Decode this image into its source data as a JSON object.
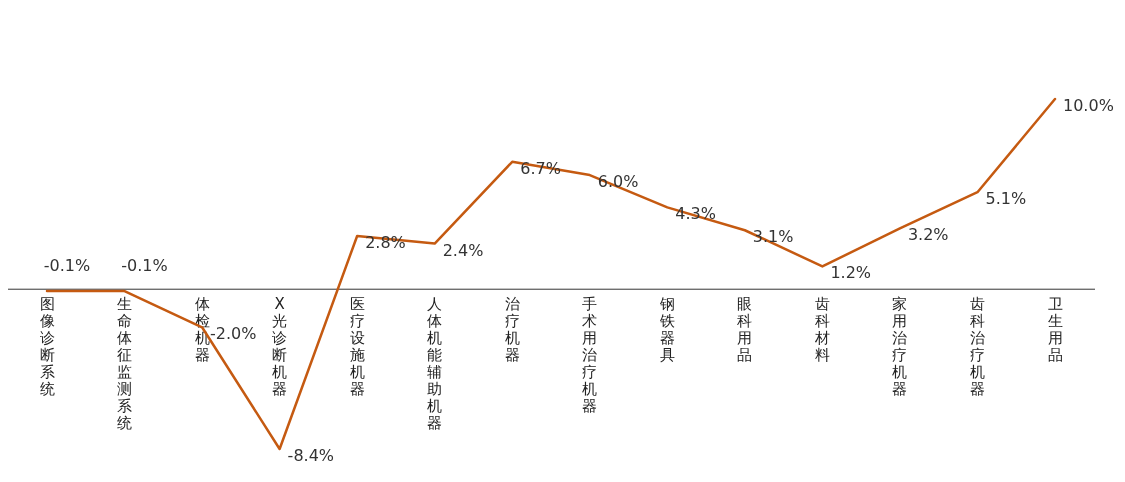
{
  "chart_data": {
    "type": "line",
    "categories": [
      "图像诊断系统",
      "生命体征监测系统",
      "体检机器",
      "X光诊断机器",
      "医疗设施机器",
      "人体机能辅助机器",
      "治疗机器",
      "手术用治疗机器",
      "钢铁器具",
      "眼科用品",
      "齿科材料",
      "家用治疗机器",
      "齿科治疗机器",
      "卫生用品"
    ],
    "series": [
      {
        "color": "#c55a11",
        "values": [
          -0.1,
          -0.1,
          -2.0,
          -8.4,
          2.8,
          2.4,
          6.7,
          6.0,
          4.3,
          3.1,
          1.2,
          3.2,
          5.1,
          10.0
        ],
        "value_labels": [
          "-0.1%",
          "-0.1%",
          "-2.0%",
          "-8.4%",
          "2.8%",
          "2.4%",
          "6.7%",
          "6.0%",
          "4.3%",
          "3.1%",
          "1.2%",
          "3.2%",
          "5.1%",
          "10.0%"
        ]
      }
    ],
    "data_labels": true,
    "marker": "none",
    "line_style": "solid"
  }
}
